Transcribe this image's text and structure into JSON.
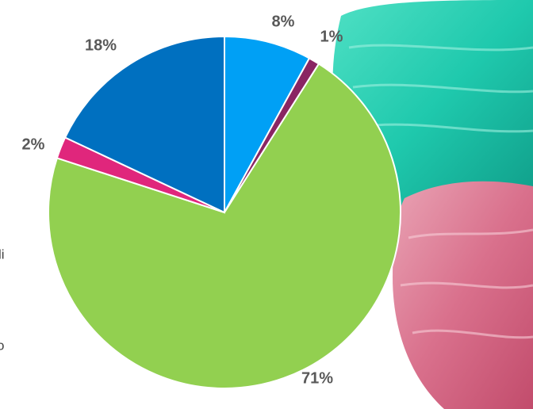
{
  "chart_data": {
    "type": "pie",
    "values": [
      8,
      1,
      71,
      2,
      18
    ],
    "value_labels": [
      "8%",
      "1%",
      "71%",
      "2%",
      "18%"
    ],
    "colors": [
      "#00a0f5",
      "#8a2563",
      "#92d050",
      "#e0267c",
      "#0070c0"
    ]
  },
  "clipped_text": [
    "li",
    "o"
  ]
}
